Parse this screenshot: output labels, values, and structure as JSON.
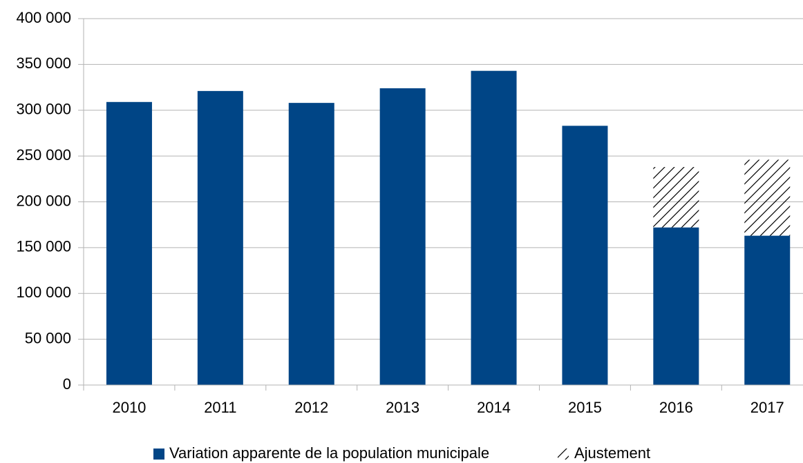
{
  "chart_data": {
    "type": "stacked_bar",
    "categories": [
      "2010",
      "2011",
      "2012",
      "2013",
      "2014",
      "2015",
      "2016",
      "2017"
    ],
    "series": [
      {
        "name": "Variation apparente de la population municipale",
        "color": "#004586",
        "values": [
          309000,
          321000,
          308000,
          324000,
          343000,
          283000,
          172000,
          163000
        ]
      },
      {
        "name": "Ajustement",
        "color": "#000000",
        "pattern": "hatch",
        "values": [
          null,
          null,
          null,
          null,
          null,
          null,
          66000,
          83000
        ]
      }
    ],
    "ylim": [
      0,
      400000
    ],
    "yticks": [
      0,
      {
        "value": 50000,
        "label": "50 000"
      },
      {
        "value": 100000,
        "label": "100 000"
      },
      {
        "value": 150000,
        "label": "150 000"
      },
      {
        "value": 200000,
        "label": "200 000"
      },
      {
        "value": 250000,
        "label": "250 000"
      },
      {
        "value": 300000,
        "label": "300 000"
      },
      {
        "value": 350000,
        "label": "350 000"
      },
      {
        "value": 400000,
        "label": "400 000"
      }
    ],
    "grid": true,
    "legend": "bottom"
  }
}
